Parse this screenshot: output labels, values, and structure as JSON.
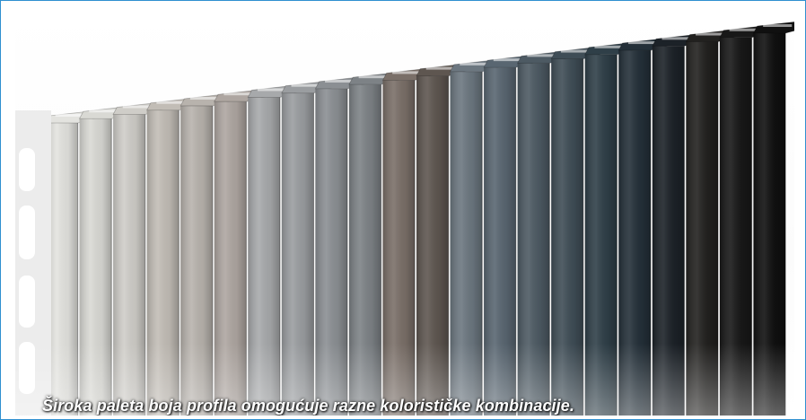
{
  "caption": "Široka paleta boja profila omogućuje razne kolorističke kombinacije.",
  "frame_border_color": "#2f8fd0",
  "profiles": [
    {
      "color": "#e3e3df"
    },
    {
      "color": "#d9d9d4"
    },
    {
      "color": "#cfcdc8"
    },
    {
      "color": "#c2bdb6"
    },
    {
      "color": "#b8b3ad"
    },
    {
      "color": "#aea6a1"
    },
    {
      "color": "#a7a9ab"
    },
    {
      "color": "#9a9da0"
    },
    {
      "color": "#8b8f93"
    },
    {
      "color": "#7d8286"
    },
    {
      "color": "#7a6f68"
    },
    {
      "color": "#5e5650"
    },
    {
      "color": "#6c7780"
    },
    {
      "color": "#596671"
    },
    {
      "color": "#4d5a63"
    },
    {
      "color": "#3f4d56"
    },
    {
      "color": "#2f3f48"
    },
    {
      "color": "#243039"
    },
    {
      "color": "#1c2228"
    },
    {
      "color": "#22211f"
    },
    {
      "color": "#181818"
    },
    {
      "color": "#101010"
    }
  ]
}
